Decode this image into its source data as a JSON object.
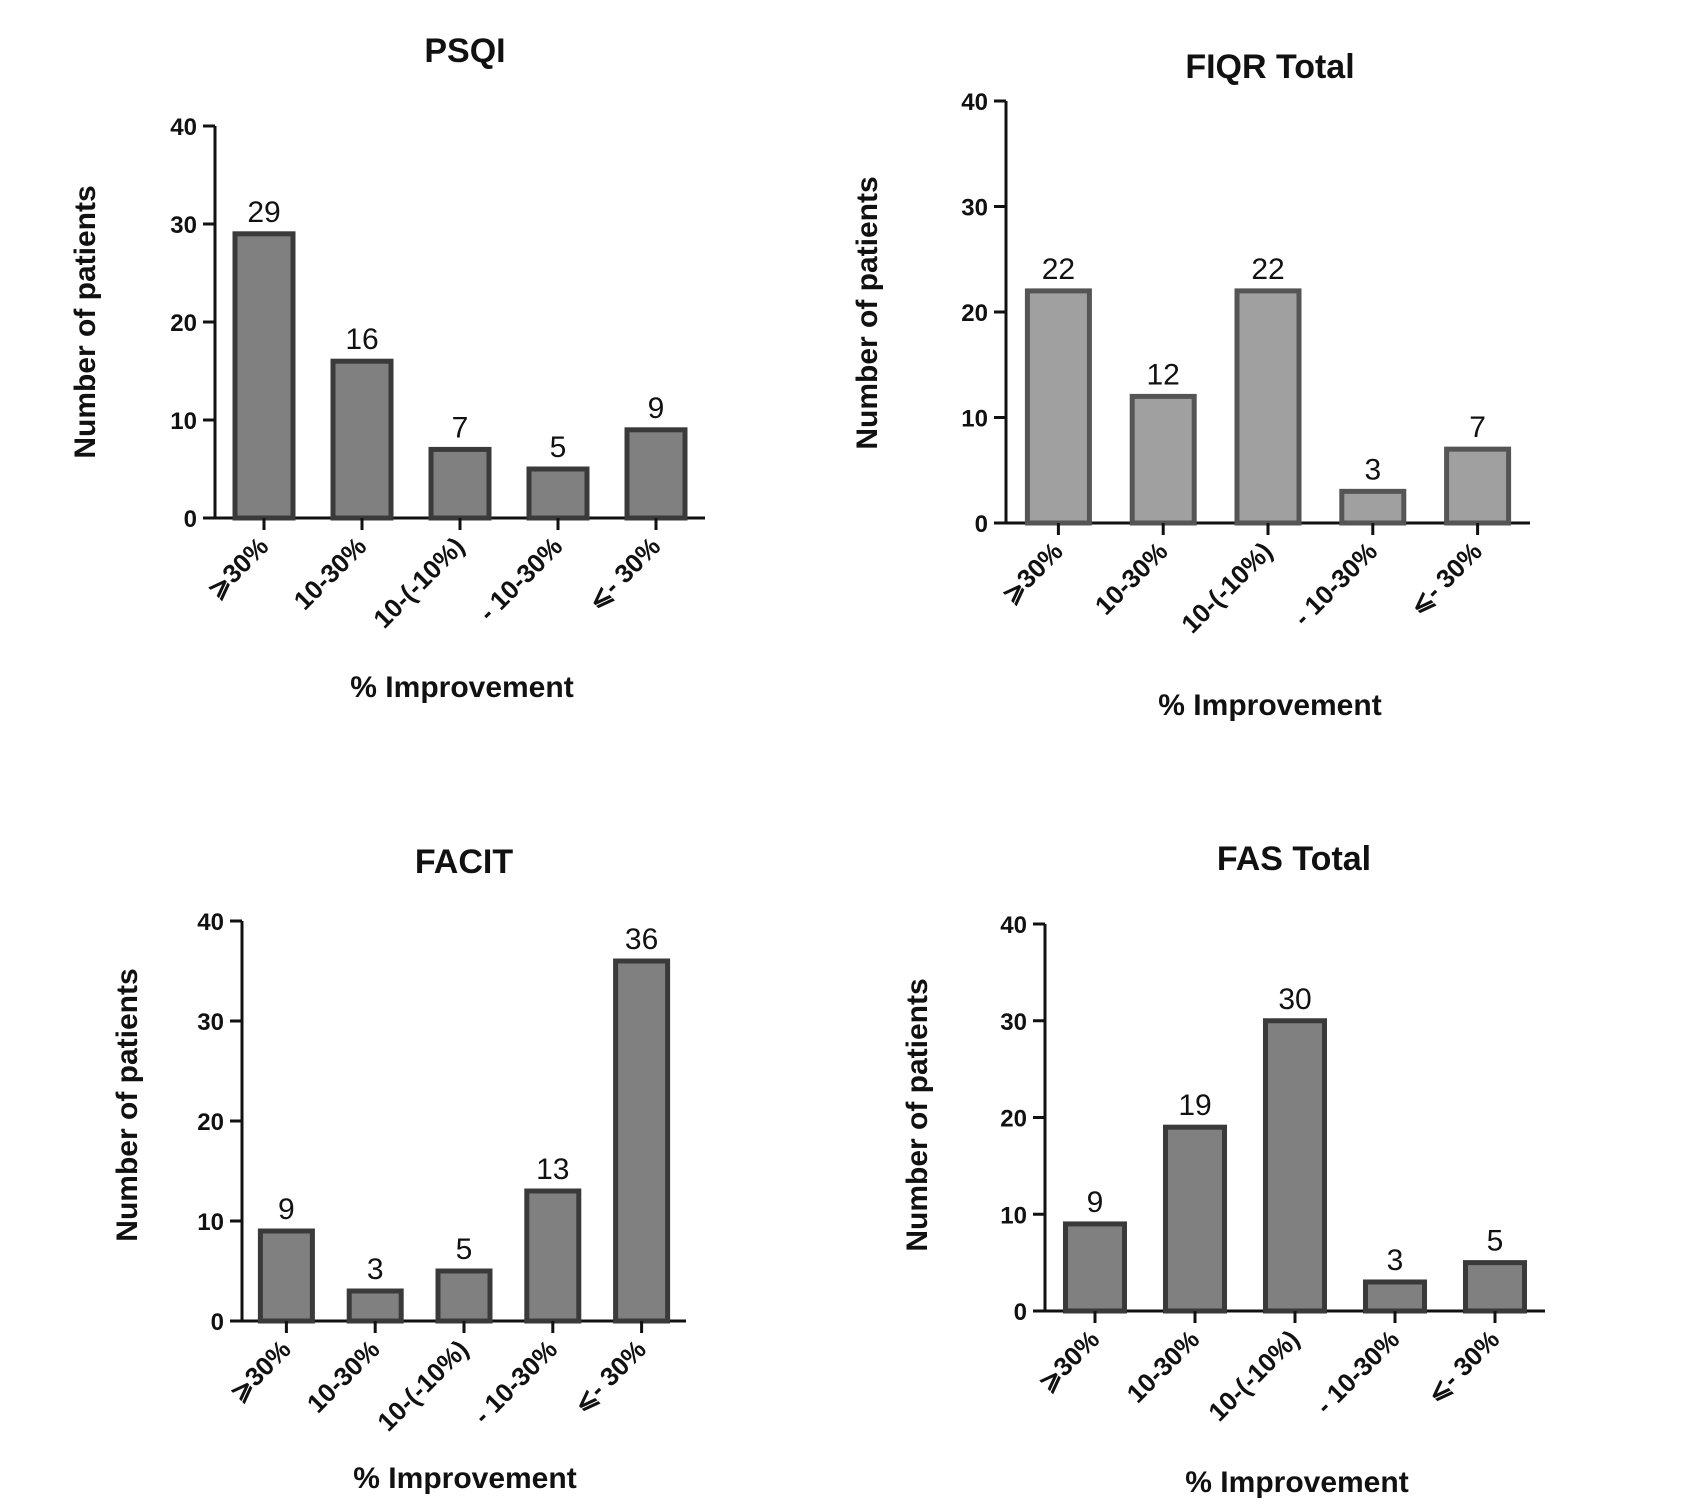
{
  "chart_data": [
    {
      "type": "bar",
      "title": "PSQI",
      "xlabel": "% Improvement",
      "ylabel": "Number of patients",
      "categories": [
        "⩾30%",
        "10-30%",
        "10-(-10%)",
        "- 10-30%",
        "⩽- 30%"
      ],
      "values": [
        29,
        16,
        7,
        5,
        9
      ],
      "ylim": [
        0,
        40
      ],
      "yticks": [
        0,
        10,
        20,
        30,
        40
      ],
      "bar_color": "#808080",
      "edge_color": "#3a3a3a"
    },
    {
      "type": "bar",
      "title": "FIQR Total",
      "xlabel": "% Improvement",
      "ylabel": "Number of patients",
      "categories": [
        "⩾30%",
        "10-30%",
        "10-(-10%)",
        "- 10-30%",
        "⩽- 30%"
      ],
      "values": [
        22,
        12,
        22,
        3,
        7
      ],
      "ylim": [
        0,
        40
      ],
      "yticks": [
        0,
        10,
        20,
        30,
        40
      ],
      "bar_color": "#a0a0a0",
      "edge_color": "#555555"
    },
    {
      "type": "bar",
      "title": "FACIT",
      "xlabel": "% Improvement",
      "ylabel": "Number of patients",
      "categories": [
        "⩾30%",
        "10-30%",
        "10-(-10%)",
        "- 10-30%",
        "⩽- 30%"
      ],
      "values": [
        9,
        3,
        5,
        13,
        36
      ],
      "ylim": [
        0,
        40
      ],
      "yticks": [
        0,
        10,
        20,
        30,
        40
      ],
      "bar_color": "#808080",
      "edge_color": "#3a3a3a"
    },
    {
      "type": "bar",
      "title": "FAS Total",
      "xlabel": "% Improvement",
      "ylabel": "Number of patients",
      "categories": [
        "⩾30%",
        "10-30%",
        "10-(-10%)",
        "- 10-30%",
        "⩽- 30%"
      ],
      "values": [
        9,
        19,
        30,
        3,
        5
      ],
      "ylim": [
        0,
        40
      ],
      "yticks": [
        0,
        10,
        20,
        30,
        40
      ],
      "bar_color": "#808080",
      "edge_color": "#3a3a3a"
    }
  ]
}
